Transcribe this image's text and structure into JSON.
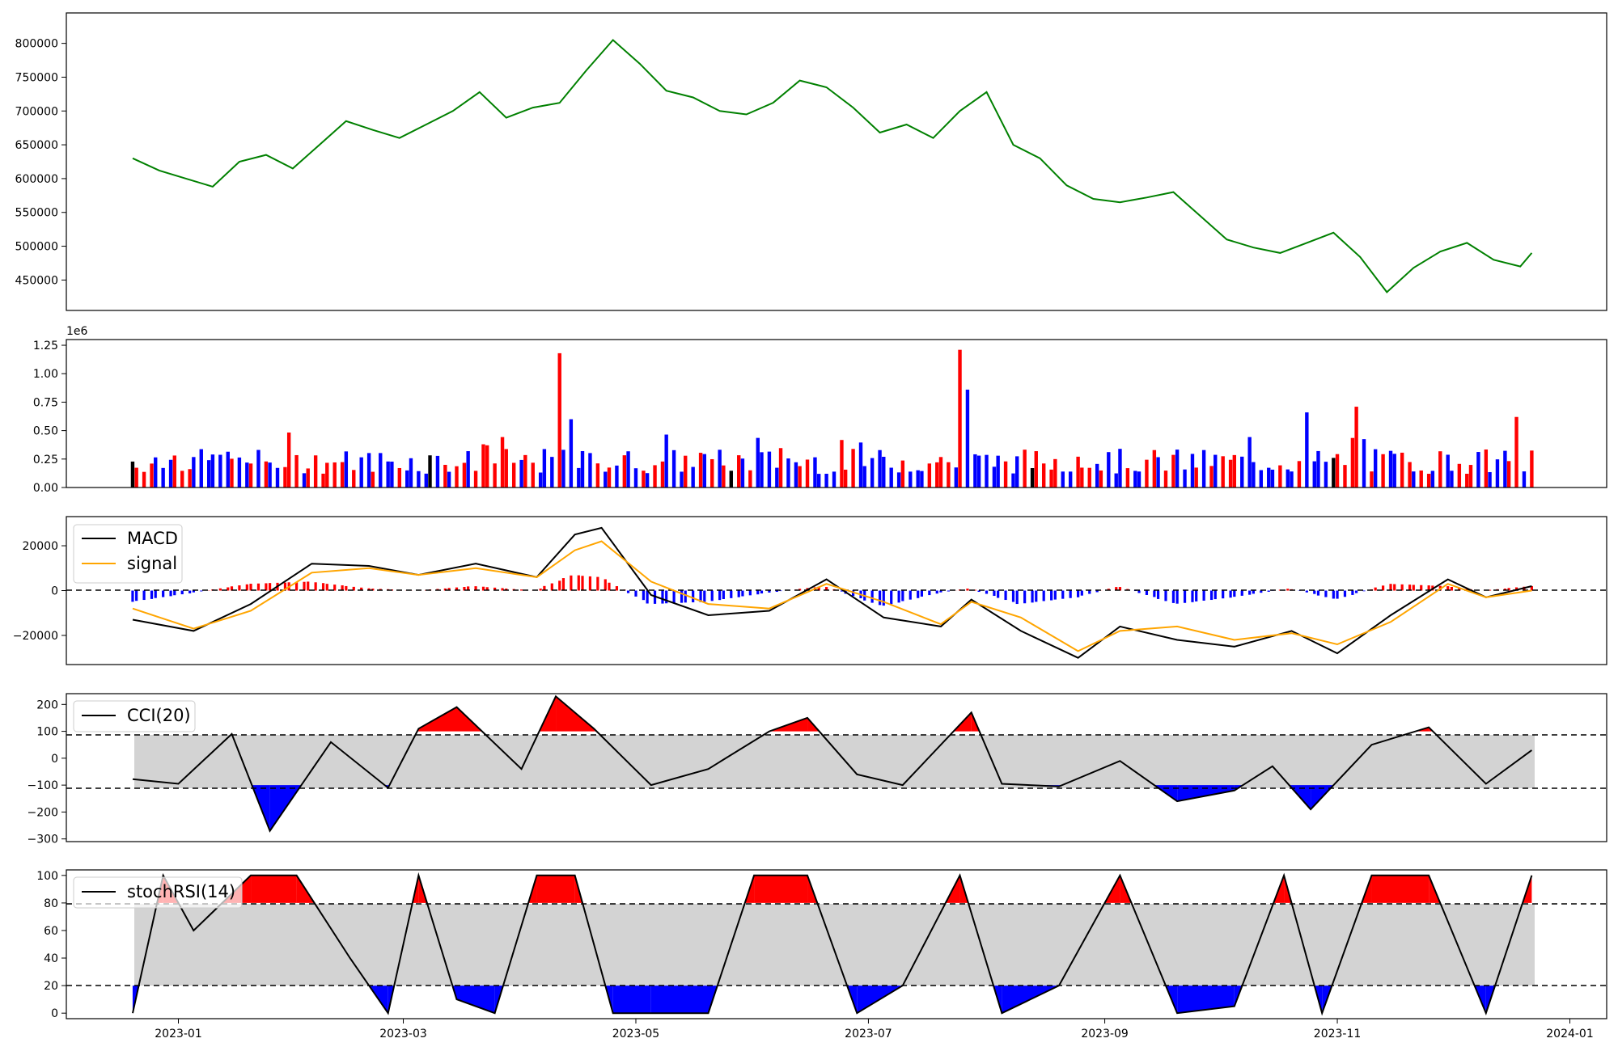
{
  "chart_data": [
    {
      "type": "line",
      "x": [
        "2022-12-20",
        "2022-12-27",
        "2023-01-03",
        "2023-01-10",
        "2023-01-17",
        "2023-01-24",
        "2023-01-31",
        "2023-02-07",
        "2023-02-14",
        "2023-02-21",
        "2023-02-28",
        "2023-03-07",
        "2023-03-14",
        "2023-03-21",
        "2023-03-28",
        "2023-04-04",
        "2023-04-11",
        "2023-04-18",
        "2023-04-25",
        "2023-05-02",
        "2023-05-09",
        "2023-05-16",
        "2023-05-23",
        "2023-05-30",
        "2023-06-06",
        "2023-06-13",
        "2023-06-20",
        "2023-06-27",
        "2023-07-04",
        "2023-07-11",
        "2023-07-18",
        "2023-07-25",
        "2023-08-01",
        "2023-08-08",
        "2023-08-15",
        "2023-08-22",
        "2023-08-29",
        "2023-09-05",
        "2023-09-12",
        "2023-09-19",
        "2023-09-26",
        "2023-10-03",
        "2023-10-10",
        "2023-10-17",
        "2023-10-24",
        "2023-10-31",
        "2023-11-07",
        "2023-11-14",
        "2023-11-21",
        "2023-11-28",
        "2023-12-05",
        "2023-12-12",
        "2023-12-19",
        "2023-12-22"
      ],
      "series": [
        {
          "values": [
            630000,
            612000,
            600000,
            588000,
            625000,
            635000,
            615000,
            650000,
            685000,
            672000,
            660000,
            680000,
            700000,
            728000,
            690000,
            705000,
            712000,
            760000,
            805000,
            770000,
            730000,
            720000,
            700000,
            695000,
            712000,
            745000,
            735000,
            705000,
            668000,
            680000,
            660000,
            700000,
            728000,
            650000,
            630000,
            590000,
            570000,
            565000,
            572000,
            580000,
            545000,
            510000,
            498000,
            490000,
            505000,
            520000,
            484000,
            432000,
            468000,
            492000,
            505000,
            480000,
            470000,
            490000
          ],
          "color": "#008000"
        }
      ],
      "ylim": [
        405000,
        845000
      ],
      "yticks": [
        "450000",
        "500000",
        "550000",
        "600000",
        "650000",
        "700000",
        "750000",
        "800000"
      ]
    },
    {
      "type": "bar",
      "scale_label": "1e6",
      "ylim": [
        0,
        1.3
      ],
      "yticks": [
        "0.00",
        "0.25",
        "0.50",
        "0.75",
        "1.00",
        "1.25"
      ],
      "colors": {
        "up": "#ff0000",
        "down": "#0000ff",
        "flat": "#000000"
      },
      "bar_count": 220,
      "spikes": [
        {
          "date": "2023-04-12",
          "value": 1.18,
          "direction": "up"
        },
        {
          "date": "2023-04-14",
          "value": 0.6,
          "direction": "down"
        },
        {
          "date": "2023-07-26",
          "value": 1.21,
          "direction": "up"
        },
        {
          "date": "2023-07-28",
          "value": 0.86,
          "direction": "down"
        },
        {
          "date": "2023-10-25",
          "value": 0.66,
          "direction": "down"
        },
        {
          "date": "2023-11-06",
          "value": 0.71,
          "direction": "up"
        },
        {
          "date": "2023-12-18",
          "value": 0.62,
          "direction": "up"
        }
      ]
    },
    {
      "type": "line",
      "x": [
        "2022-12-20",
        "2023-01-05",
        "2023-01-20",
        "2023-02-05",
        "2023-02-20",
        "2023-03-05",
        "2023-03-20",
        "2023-04-05",
        "2023-04-15",
        "2023-04-22",
        "2023-05-05",
        "2023-05-20",
        "2023-06-05",
        "2023-06-20",
        "2023-07-05",
        "2023-07-20",
        "2023-07-28",
        "2023-08-10",
        "2023-08-25",
        "2023-09-05",
        "2023-09-20",
        "2023-10-05",
        "2023-10-20",
        "2023-11-01",
        "2023-11-15",
        "2023-11-30",
        "2023-12-10",
        "2023-12-22"
      ],
      "series": [
        {
          "name": "MACD",
          "color": "#000000",
          "values": [
            -13000,
            -18000,
            -6000,
            12000,
            11000,
            7000,
            12000,
            6000,
            25000,
            28000,
            -2000,
            -11000,
            -9000,
            5000,
            -12000,
            -16000,
            -4000,
            -18000,
            -30000,
            -16000,
            -22000,
            -25000,
            -18000,
            -28000,
            -11000,
            5000,
            -3000,
            2000
          ]
        },
        {
          "name": "signal",
          "color": "#ffa500",
          "values": [
            -8000,
            -17000,
            -9000,
            8000,
            10000,
            7000,
            10000,
            6000,
            18000,
            22000,
            4000,
            -6000,
            -8000,
            3000,
            -5000,
            -15000,
            -5000,
            -12000,
            -27000,
            -18000,
            -16000,
            -22000,
            -19000,
            -24000,
            -14000,
            3000,
            -3000,
            0
          ]
        }
      ],
      "ylim": [
        -33000,
        33000
      ],
      "yticks": [
        "−20000",
        "0",
        "20000"
      ]
    },
    {
      "type": "line",
      "x": [
        "2022-12-20",
        "2023-01-01",
        "2023-01-15",
        "2023-01-25",
        "2023-02-10",
        "2023-02-25",
        "2023-03-05",
        "2023-03-15",
        "2023-04-01",
        "2023-04-10",
        "2023-04-20",
        "2023-05-05",
        "2023-05-20",
        "2023-06-05",
        "2023-06-15",
        "2023-06-28",
        "2023-07-10",
        "2023-07-28",
        "2023-08-05",
        "2023-08-20",
        "2023-09-05",
        "2023-09-20",
        "2023-10-05",
        "2023-10-15",
        "2023-10-25",
        "2023-11-10",
        "2023-11-25",
        "2023-12-10",
        "2023-12-22"
      ],
      "series": [
        {
          "name": "CCI(20)",
          "color": "#000000",
          "values": [
            -78,
            -95,
            90,
            -270,
            60,
            -110,
            110,
            190,
            -40,
            230,
            110,
            -100,
            -40,
            100,
            150,
            -60,
            -100,
            170,
            -95,
            -105,
            -10,
            -160,
            -120,
            -30,
            -190,
            50,
            115,
            -95,
            30
          ]
        }
      ],
      "ylim": [
        -310,
        240
      ],
      "yticks": [
        "−300",
        "−200",
        "−100",
        "0",
        "100",
        "200"
      ],
      "bands": [
        -100,
        100
      ]
    },
    {
      "type": "line",
      "x": [
        "2022-12-20",
        "2022-12-28",
        "2023-01-05",
        "2023-01-20",
        "2023-02-01",
        "2023-02-15",
        "2023-02-25",
        "2023-03-05",
        "2023-03-15",
        "2023-03-25",
        "2023-04-05",
        "2023-04-15",
        "2023-04-25",
        "2023-05-05",
        "2023-05-20",
        "2023-06-01",
        "2023-06-15",
        "2023-06-28",
        "2023-07-10",
        "2023-07-25",
        "2023-08-05",
        "2023-08-20",
        "2023-09-05",
        "2023-09-20",
        "2023-10-05",
        "2023-10-18",
        "2023-10-28",
        "2023-11-10",
        "2023-11-25",
        "2023-12-10",
        "2023-12-22"
      ],
      "series": [
        {
          "name": "stochRSI(14)",
          "color": "#000000",
          "values": [
            0,
            100,
            60,
            100,
            100,
            40,
            0,
            100,
            10,
            0,
            100,
            100,
            0,
            0,
            0,
            100,
            100,
            0,
            20,
            100,
            0,
            20,
            100,
            0,
            5,
            100,
            0,
            100,
            100,
            0,
            100
          ]
        }
      ],
      "ylim": [
        -4,
        104
      ],
      "yticks": [
        "0",
        "20",
        "40",
        "60",
        "80",
        "100"
      ],
      "bands": [
        20,
        80
      ]
    }
  ],
  "x_axis": {
    "ticks": [
      "2023-01",
      "2023-03",
      "2023-05",
      "2023-07",
      "2023-09",
      "2023-11",
      "2024-01"
    ]
  },
  "colors": {
    "price": "#008000",
    "up": "#ff0000",
    "down": "#0000ff",
    "band_fill": "#d3d3d3",
    "signal": "#ffa500"
  }
}
